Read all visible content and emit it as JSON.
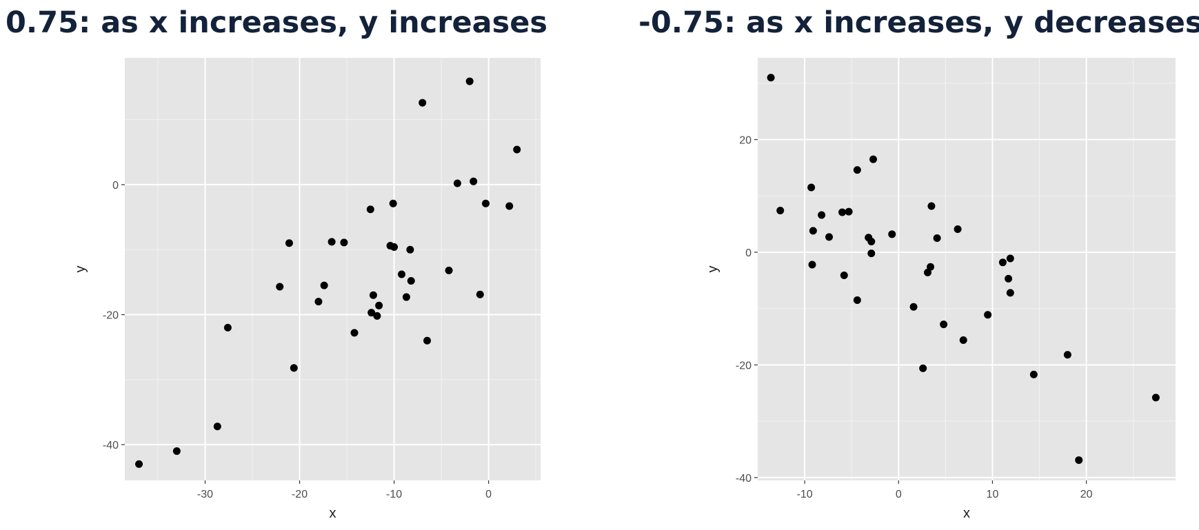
{
  "titles": {
    "left": "0.75: as x increases, y increases",
    "right": "-0.75: as x increases, y decreases"
  },
  "chart_data": [
    {
      "type": "scatter",
      "title": "0.75: as x increases, y increases",
      "xlabel": "x",
      "ylabel": "y",
      "xlim": [
        -38.5,
        5.5
      ],
      "ylim": [
        -45.5,
        19.5
      ],
      "xticks": [
        -30,
        -20,
        -10,
        0
      ],
      "yticks": [
        -40,
        -20,
        0
      ],
      "grid": true,
      "background": "#e5e5e5",
      "point_color": "#000000",
      "points": [
        [
          -37,
          -43
        ],
        [
          -33,
          -41
        ],
        [
          -28.7,
          -37.2
        ],
        [
          -27.6,
          -22
        ],
        [
          -22.1,
          -15.7
        ],
        [
          -21.1,
          -9
        ],
        [
          -20.6,
          -28.2
        ],
        [
          -18,
          -18
        ],
        [
          -17.4,
          -15.5
        ],
        [
          -16.6,
          -8.8
        ],
        [
          -15.3,
          -8.9
        ],
        [
          -14.2,
          -22.8
        ],
        [
          -12.5,
          -3.8
        ],
        [
          -12.4,
          -19.7
        ],
        [
          -12.2,
          -17
        ],
        [
          -11.8,
          -20.2
        ],
        [
          -11.6,
          -18.6
        ],
        [
          -10.4,
          -9.4
        ],
        [
          -10.1,
          -2.9
        ],
        [
          -10,
          -9.6
        ],
        [
          -9.2,
          -13.8
        ],
        [
          -8.7,
          -17.3
        ],
        [
          -8.3,
          -10
        ],
        [
          -8.2,
          -14.8
        ],
        [
          -7,
          12.6
        ],
        [
          -6.5,
          -24
        ],
        [
          -4.2,
          -13.2
        ],
        [
          -3.3,
          0.2
        ],
        [
          -2,
          15.9
        ],
        [
          -1.6,
          0.5
        ],
        [
          -0.9,
          -16.9
        ],
        [
          -0.3,
          -2.9
        ],
        [
          2.2,
          -3.3
        ],
        [
          3,
          5.4
        ]
      ]
    },
    {
      "type": "scatter",
      "title": "-0.75: as x increases, y decreases",
      "xlabel": "x",
      "ylabel": "y",
      "xlim": [
        -15,
        29.5
      ],
      "ylim": [
        -40.5,
        34.5
      ],
      "xticks": [
        -10,
        0,
        10,
        20
      ],
      "yticks": [
        -40,
        -20,
        0,
        20
      ],
      "grid": true,
      "background": "#e5e5e5",
      "point_color": "#000000",
      "points": [
        [
          -13.6,
          31
        ],
        [
          -12.6,
          7.4
        ],
        [
          -9.3,
          11.5
        ],
        [
          -9.1,
          3.8
        ],
        [
          -9.2,
          -2.2
        ],
        [
          -8.2,
          6.6
        ],
        [
          -7.4,
          2.7
        ],
        [
          -6,
          7.1
        ],
        [
          -5.8,
          -4.1
        ],
        [
          -5.3,
          7.2
        ],
        [
          -4.4,
          14.6
        ],
        [
          -4.4,
          -8.5
        ],
        [
          -3.2,
          2.6
        ],
        [
          -2.9,
          -0.2
        ],
        [
          -2.9,
          1.9
        ],
        [
          -2.7,
          16.5
        ],
        [
          -0.7,
          3.2
        ],
        [
          1.6,
          -9.7
        ],
        [
          2.6,
          -20.6
        ],
        [
          3.1,
          -3.6
        ],
        [
          3.4,
          -2.6
        ],
        [
          3.5,
          8.2
        ],
        [
          4.1,
          2.5
        ],
        [
          4.8,
          -12.8
        ],
        [
          6.3,
          4.1
        ],
        [
          6.9,
          -15.6
        ],
        [
          9.5,
          -11.1
        ],
        [
          11.1,
          -1.8
        ],
        [
          11.7,
          -4.7
        ],
        [
          11.9,
          -1.1
        ],
        [
          11.9,
          -7.2
        ],
        [
          14.4,
          -21.7
        ],
        [
          18,
          -18.2
        ],
        [
          19.2,
          -36.9
        ],
        [
          27.4,
          -25.8
        ]
      ]
    }
  ]
}
